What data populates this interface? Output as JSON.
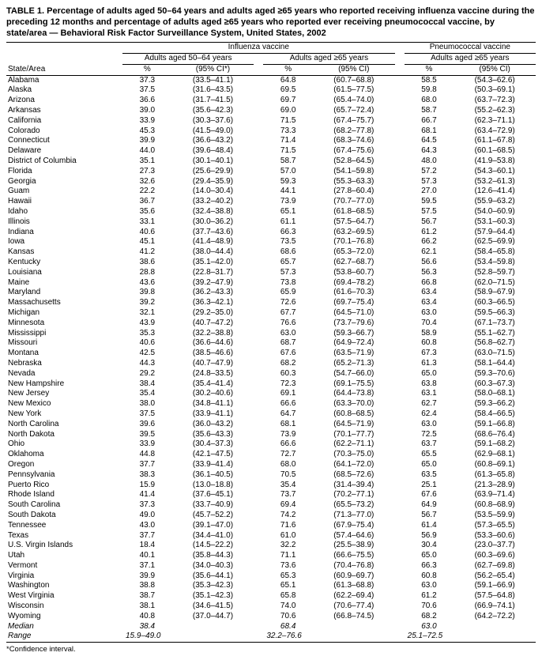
{
  "title": "TABLE 1. Percentage of adults aged 50–64 years and adults aged ≥65 years who reported receiving influenza vaccine during the preceding 12 months and percentage of adults aged ≥65 years who reported ever receiving pneumococcal vaccine, by state/area — Behavioral Risk Factor Surveillance System, United States, 2002",
  "headers": {
    "group_flu": "Influenza vaccine",
    "group_pneu": "Pneumococcal vaccine",
    "sub_5064": "Adults aged 50–64 years",
    "sub_65a": "Adults aged ≥65 years",
    "sub_65b": "Adults aged ≥65 years",
    "state": "State/Area",
    "pct": "%",
    "ci_first": "(95% CI*)",
    "ci": "(95% CI)"
  },
  "rows": [
    {
      "s": "Alabama",
      "a": "37.3",
      "aci": "(33.5–41.1)",
      "b": "64.8",
      "bci": "(60.7–68.8)",
      "c": "58.5",
      "cci": "(54.3–62.6)"
    },
    {
      "s": "Alaska",
      "a": "37.5",
      "aci": "(31.6–43.5)",
      "b": "69.5",
      "bci": "(61.5–77.5)",
      "c": "59.8",
      "cci": "(50.3–69.1)"
    },
    {
      "s": "Arizona",
      "a": "36.6",
      "aci": "(31.7–41.5)",
      "b": "69.7",
      "bci": "(65.4–74.0)",
      "c": "68.0",
      "cci": "(63.7–72.3)"
    },
    {
      "s": "Arkansas",
      "a": "39.0",
      "aci": "(35.6–42.3)",
      "b": "69.0",
      "bci": "(65.7–72.4)",
      "c": "58.7",
      "cci": "(55.2–62.3)"
    },
    {
      "s": "California",
      "a": "33.9",
      "aci": "(30.3–37.6)",
      "b": "71.5",
      "bci": "(67.4–75.7)",
      "c": "66.7",
      "cci": "(62.3–71.1)"
    },
    {
      "s": "Colorado",
      "a": "45.3",
      "aci": "(41.5–49.0)",
      "b": "73.3",
      "bci": "(68.2–77.8)",
      "c": "68.1",
      "cci": "(63.4–72.9)"
    },
    {
      "s": "Connecticut",
      "a": "39.9",
      "aci": "(36.6–43.2)",
      "b": "71.4",
      "bci": "(68.3–74.6)",
      "c": "64.5",
      "cci": "(61.1–67.8)"
    },
    {
      "s": "Delaware",
      "a": "44.0",
      "aci": "(39.6–48.4)",
      "b": "71.5",
      "bci": "(67.4–75.6)",
      "c": "64.3",
      "cci": "(60.1–68.5)"
    },
    {
      "s": "District of Columbia",
      "a": "35.1",
      "aci": "(30.1–40.1)",
      "b": "58.7",
      "bci": "(52.8–64.5)",
      "c": "48.0",
      "cci": "(41.9–53.8)"
    },
    {
      "s": "Florida",
      "a": "27.3",
      "aci": "(25.6–29.9)",
      "b": "57.0",
      "bci": "(54.1–59.8)",
      "c": "57.2",
      "cci": "(54.3–60.1)"
    },
    {
      "s": "Georgia",
      "a": "32.6",
      "aci": "(29.4–35.9)",
      "b": "59.3",
      "bci": "(55.3–63.3)",
      "c": "57.3",
      "cci": "(53.2–61.3)"
    },
    {
      "s": "Guam",
      "a": "22.2",
      "aci": "(14.0–30.4)",
      "b": "44.1",
      "bci": "(27.8–60.4)",
      "c": "27.0",
      "cci": "(12.6–41.4)"
    },
    {
      "s": "Hawaii",
      "a": "36.7",
      "aci": "(33.2–40.2)",
      "b": "73.9",
      "bci": "(70.7–77.0)",
      "c": "59.5",
      "cci": "(55.9–63.2)"
    },
    {
      "s": "Idaho",
      "a": "35.6",
      "aci": "(32.4–38.8)",
      "b": "65.1",
      "bci": "(61.8–68.5)",
      "c": "57.5",
      "cci": "(54.0–60.9)"
    },
    {
      "s": "Illinois",
      "a": "33.1",
      "aci": "(30.0–36.2)",
      "b": "61.1",
      "bci": "(57.5–64.7)",
      "c": "56.7",
      "cci": "(53.1–60.3)"
    },
    {
      "s": "Indiana",
      "a": "40.6",
      "aci": "(37.7–43.6)",
      "b": "66.3",
      "bci": "(63.2–69.5)",
      "c": "61.2",
      "cci": "(57.9–64.4)"
    },
    {
      "s": "Iowa",
      "a": "45.1",
      "aci": "(41.4–48.9)",
      "b": "73.5",
      "bci": "(70.1–76.8)",
      "c": "66.2",
      "cci": "(62.5–69.9)"
    },
    {
      "s": "Kansas",
      "a": "41.2",
      "aci": "(38.0–44.4)",
      "b": "68.6",
      "bci": "(65.3–72.0)",
      "c": "62.1",
      "cci": "(58.4–65.8)"
    },
    {
      "s": "Kentucky",
      "a": "38.6",
      "aci": "(35.1–42.0)",
      "b": "65.7",
      "bci": "(62.7–68.7)",
      "c": "56.6",
      "cci": "(53.4–59.8)"
    },
    {
      "s": "Louisiana",
      "a": "28.8",
      "aci": "(22.8–31.7)",
      "b": "57.3",
      "bci": "(53.8–60.7)",
      "c": "56.3",
      "cci": "(52.8–59.7)"
    },
    {
      "s": "Maine",
      "a": "43.6",
      "aci": "(39.2–47.9)",
      "b": "73.8",
      "bci": "(69.4–78.2)",
      "c": "66.8",
      "cci": "(62.0–71.5)"
    },
    {
      "s": "Maryland",
      "a": "39.8",
      "aci": "(36.2–43.3)",
      "b": "65.9",
      "bci": "(61.6–70.3)",
      "c": "63.4",
      "cci": "(58.9–67.9)"
    },
    {
      "s": "Massachusetts",
      "a": "39.2",
      "aci": "(36.3–42.1)",
      "b": "72.6",
      "bci": "(69.7–75.4)",
      "c": "63.4",
      "cci": "(60.3–66.5)"
    },
    {
      "s": "Michigan",
      "a": "32.1",
      "aci": "(29.2–35.0)",
      "b": "67.7",
      "bci": "(64.5–71.0)",
      "c": "63.0",
      "cci": "(59.5–66.3)"
    },
    {
      "s": "Minnesota",
      "a": "43.9",
      "aci": "(40.7–47.2)",
      "b": "76.6",
      "bci": "(73.7–79.6)",
      "c": "70.4",
      "cci": "(67.1–73.7)"
    },
    {
      "s": "Mississippi",
      "a": "35.3",
      "aci": "(32.2–38.8)",
      "b": "63.0",
      "bci": "(59.3–66.7)",
      "c": "58.9",
      "cci": "(55.1–62.7)"
    },
    {
      "s": "Missouri",
      "a": "40.6",
      "aci": "(36.6–44.6)",
      "b": "68.7",
      "bci": "(64.9–72.4)",
      "c": "60.8",
      "cci": "(56.8–62.7)"
    },
    {
      "s": "Montana",
      "a": "42.5",
      "aci": "(38.5–46.6)",
      "b": "67.6",
      "bci": "(63.5–71.9)",
      "c": "67.3",
      "cci": "(63.0–71.5)"
    },
    {
      "s": "Nebraska",
      "a": "44.3",
      "aci": "(40.7–47.9)",
      "b": "68.2",
      "bci": "(65.2–71.3)",
      "c": "61.3",
      "cci": "(58.1–64.4)"
    },
    {
      "s": "Nevada",
      "a": "29.2",
      "aci": "(24.8–33.5)",
      "b": "60.3",
      "bci": "(54.7–66.0)",
      "c": "65.0",
      "cci": "(59.3–70.6)"
    },
    {
      "s": "New Hampshire",
      "a": "38.4",
      "aci": "(35.4–41.4)",
      "b": "72.3",
      "bci": "(69.1–75.5)",
      "c": "63.8",
      "cci": "(60.3–67.3)"
    },
    {
      "s": "New Jersey",
      "a": "35.4",
      "aci": "(30.2–40.6)",
      "b": "69.1",
      "bci": "(64.4–73.8)",
      "c": "63.1",
      "cci": "(58.0–68.1)"
    },
    {
      "s": "New Mexico",
      "a": "38.0",
      "aci": "(34.8–41.1)",
      "b": "66.6",
      "bci": "(63.3–70.0)",
      "c": "62.7",
      "cci": "(59.3–66.2)"
    },
    {
      "s": "New York",
      "a": "37.5",
      "aci": "(33.9–41.1)",
      "b": "64.7",
      "bci": "(60.8–68.5)",
      "c": "62.4",
      "cci": "(58.4–66.5)"
    },
    {
      "s": "North Carolina",
      "a": "39.6",
      "aci": "(36.0–43.2)",
      "b": "68.1",
      "bci": "(64.5–71.9)",
      "c": "63.0",
      "cci": "(59.1–66.8)"
    },
    {
      "s": "North Dakota",
      "a": "39.5",
      "aci": "(35.6–43.3)",
      "b": "73.9",
      "bci": "(70.1–77.7)",
      "c": "72.5",
      "cci": "(68.6–76.4)"
    },
    {
      "s": "Ohio",
      "a": "33.9",
      "aci": "(30.4–37.3)",
      "b": "66.6",
      "bci": "(62.2–71.1)",
      "c": "63.7",
      "cci": "(59.1–68.2)"
    },
    {
      "s": "Oklahoma",
      "a": "44.8",
      "aci": "(42.1–47.5)",
      "b": "72.7",
      "bci": "(70.3–75.0)",
      "c": "65.5",
      "cci": "(62.9–68.1)"
    },
    {
      "s": "Oregon",
      "a": "37.7",
      "aci": "(33.9–41.4)",
      "b": "68.0",
      "bci": "(64.1–72.0)",
      "c": "65.0",
      "cci": "(60.8–69.1)"
    },
    {
      "s": "Pennsylvania",
      "a": "38.3",
      "aci": "(36.1–40.5)",
      "b": "70.5",
      "bci": "(68.5–72.6)",
      "c": "63.5",
      "cci": "(61.3–65.8)"
    },
    {
      "s": "Puerto Rico",
      "a": "15.9",
      "aci": "(13.0–18.8)",
      "b": "35.4",
      "bci": "(31.4–39.4)",
      "c": "25.1",
      "cci": "(21.3–28.9)"
    },
    {
      "s": "Rhode Island",
      "a": "41.4",
      "aci": "(37.6–45.1)",
      "b": "73.7",
      "bci": "(70.2–77.1)",
      "c": "67.6",
      "cci": "(63.9–71.4)"
    },
    {
      "s": "South Carolina",
      "a": "37.3",
      "aci": "(33.7–40.9)",
      "b": "69.4",
      "bci": "(65.5–73.2)",
      "c": "64.9",
      "cci": "(60.8–68.9)"
    },
    {
      "s": "South Dakota",
      "a": "49.0",
      "aci": "(45.7–52.2)",
      "b": "74.2",
      "bci": "(71.3–77.0)",
      "c": "56.7",
      "cci": "(53.5–59.9)"
    },
    {
      "s": "Tennessee",
      "a": "43.0",
      "aci": "(39.1–47.0)",
      "b": "71.6",
      "bci": "(67.9–75.4)",
      "c": "61.4",
      "cci": "(57.3–65.5)"
    },
    {
      "s": "Texas",
      "a": "37.7",
      "aci": "(34.4–41.0)",
      "b": "61.0",
      "bci": "(57.4–64.6)",
      "c": "56.9",
      "cci": "(53.3–60.6)"
    },
    {
      "s": "U.S. Virgin Islands",
      "a": "18.4",
      "aci": "(14.5–22.2)",
      "b": "32.2",
      "bci": "(25.5–38.9)",
      "c": "30.4",
      "cci": "(23.0–37.7)"
    },
    {
      "s": "Utah",
      "a": "40.1",
      "aci": "(35.8–44.3)",
      "b": "71.1",
      "bci": "(66.6–75.5)",
      "c": "65.0",
      "cci": "(60.3–69.6)"
    },
    {
      "s": "Vermont",
      "a": "37.1",
      "aci": "(34.0–40.3)",
      "b": "73.6",
      "bci": "(70.4–76.8)",
      "c": "66.3",
      "cci": "(62.7–69.8)"
    },
    {
      "s": "Virginia",
      "a": "39.9",
      "aci": "(35.6–44.1)",
      "b": "65.3",
      "bci": "(60.9–69.7)",
      "c": "60.8",
      "cci": "(56.2–65.4)"
    },
    {
      "s": "Washington",
      "a": "38.8",
      "aci": "(35.3–42.3)",
      "b": "65.1",
      "bci": "(61.3–68.8)",
      "c": "63.0",
      "cci": "(59.1–66.9)"
    },
    {
      "s": "West Virginia",
      "a": "38.7",
      "aci": "(35.1–42.3)",
      "b": "65.8",
      "bci": "(62.2–69.4)",
      "c": "61.2",
      "cci": "(57.5–64.8)"
    },
    {
      "s": "Wisconsin",
      "a": "38.1",
      "aci": "(34.6–41.5)",
      "b": "74.0",
      "bci": "(70.6–77.4)",
      "c": "70.6",
      "cci": "(66.9–74.1)"
    },
    {
      "s": "Wyoming",
      "a": "40.8",
      "aci": "(37.0–44.7)",
      "b": "70.6",
      "bci": "(66.8–74.5)",
      "c": "68.2",
      "cci": "(64.2–72.2)"
    }
  ],
  "summary": {
    "median_label": "Median",
    "median_a": "38.4",
    "median_b": "68.4",
    "median_c": "63.0",
    "range_label": "Range",
    "range_a": "15.9–49.0",
    "range_b": "32.2–76.6",
    "range_c": "25.1–72.5"
  },
  "footnote": "*Confidence interval."
}
